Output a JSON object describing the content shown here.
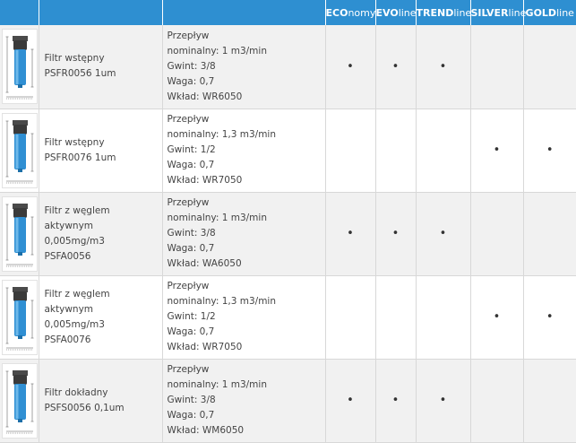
{
  "header": {
    "economy": {
      "bold": "ECO",
      "rest": "nomy"
    },
    "evoline": {
      "bold": "EVO",
      "rest": "line"
    },
    "trendline": {
      "bold": "TREND",
      "rest": "line"
    },
    "silverline": {
      "bold": "SILVER",
      "rest": "line"
    },
    "goldline": {
      "bold": "GOLD",
      "rest": "line"
    }
  },
  "colors": {
    "header_bg": "#2e8fd1",
    "filter_body": "#2f8fd3",
    "row_alt": "#f1f1f1"
  },
  "rows": [
    {
      "image": "filter-icon",
      "name": [
        "Filtr wstępny",
        "PSFR0056 1um"
      ],
      "specs": [
        "Przepływ",
        "nominalny: 1 m3/min",
        "Gwint: 3/8",
        "Waga: 0,7",
        "Wkład: WR6050"
      ],
      "marks": {
        "economy": "•",
        "evoline": "•",
        "trendline": "•",
        "silverline": "",
        "goldline": ""
      }
    },
    {
      "image": "filter-icon",
      "name": [
        "Filtr wstępny",
        "PSFR0076 1um"
      ],
      "specs": [
        "Przepływ",
        "nominalny: 1,3 m3/min",
        "Gwint: 1/2",
        "Waga: 0,7",
        "Wkład: WR7050"
      ],
      "marks": {
        "economy": "",
        "evoline": "",
        "trendline": "",
        "silverline": "•",
        "goldline": "•"
      }
    },
    {
      "image": "filter-icon",
      "name": [
        "Filtr z węglem",
        "aktywnym",
        "0,005mg/m3",
        "PSFA0056"
      ],
      "specs": [
        "Przepływ",
        "nominalny: 1 m3/min",
        "Gwint: 3/8",
        "Waga: 0,7",
        "Wkład: WA6050"
      ],
      "marks": {
        "economy": "•",
        "evoline": "•",
        "trendline": "•",
        "silverline": "",
        "goldline": ""
      }
    },
    {
      "image": "filter-icon",
      "name": [
        "Filtr z węglem",
        "aktywnym",
        "0,005mg/m3",
        "PSFA0076"
      ],
      "specs": [
        "Przepływ",
        "nominalny: 1,3 m3/min",
        "Gwint: 1/2",
        "Waga: 0,7",
        "Wkład: WR7050"
      ],
      "marks": {
        "economy": "",
        "evoline": "",
        "trendline": "",
        "silverline": "•",
        "goldline": "•"
      }
    },
    {
      "image": "filter-icon",
      "name": [
        "Filtr dokładny",
        "PSFS0056 0,1um"
      ],
      "specs": [
        "Przepływ",
        "nominalny: 1 m3/min",
        "Gwint: 3/8",
        "Waga: 0,7",
        "Wkład: WM6050"
      ],
      "marks": {
        "economy": "•",
        "evoline": "•",
        "trendline": "•",
        "silverline": "",
        "goldline": ""
      }
    }
  ]
}
